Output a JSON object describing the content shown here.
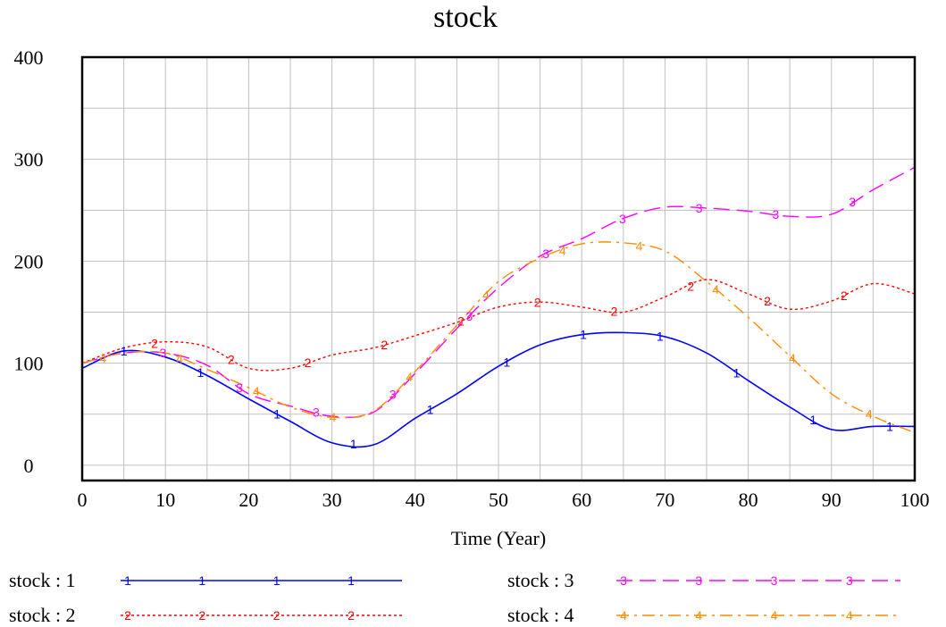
{
  "chart_data": {
    "type": "line",
    "title": "stock",
    "xlabel": "Time (Year)",
    "ylabel": "",
    "xlim": [
      0,
      100
    ],
    "ylim": [
      -15,
      400
    ],
    "x_ticks": [
      "0",
      "10",
      "20",
      "30",
      "40",
      "50",
      "60",
      "70",
      "80",
      "90",
      "100"
    ],
    "y_ticks": [
      "0",
      "100",
      "200",
      "300",
      "400"
    ],
    "grid": true,
    "legend_position": "bottom",
    "x": [
      0,
      5,
      10,
      15,
      20,
      25,
      30,
      35,
      40,
      45,
      50,
      55,
      60,
      65,
      70,
      75,
      80,
      85,
      90,
      95,
      100
    ],
    "series": [
      {
        "name": "stock : 1",
        "marker": "1",
        "color": "#0000ff",
        "dash": "solid",
        "values": [
          95,
          112,
          106,
          88,
          65,
          43,
          22,
          20,
          46,
          70,
          97,
          118,
          128,
          130,
          126,
          110,
          83,
          57,
          35,
          38,
          38
        ]
      },
      {
        "name": "stock : 2",
        "marker": "2",
        "color": "#ff0000",
        "dash": "dotted",
        "values": [
          100,
          115,
          121,
          116,
          95,
          95,
          108,
          115,
          127,
          140,
          155,
          160,
          155,
          150,
          165,
          182,
          168,
          153,
          161,
          178,
          168
        ]
      },
      {
        "name": "stock : 3",
        "marker": "3",
        "color": "#ff00ff",
        "dash": "dashed",
        "values": [
          100,
          110,
          110,
          98,
          70,
          58,
          48,
          52,
          90,
          134,
          174,
          205,
          222,
          242,
          253,
          252,
          249,
          244,
          246,
          270,
          292
        ]
      },
      {
        "name": "stock : 4",
        "marker": "4",
        "color": "#ff8c00",
        "dash": "dashdot",
        "values": [
          100,
          110,
          110,
          94,
          76,
          57,
          47,
          53,
          92,
          137,
          180,
          203,
          217,
          218,
          210,
          180,
          145,
          107,
          70,
          48,
          32
        ]
      }
    ]
  }
}
